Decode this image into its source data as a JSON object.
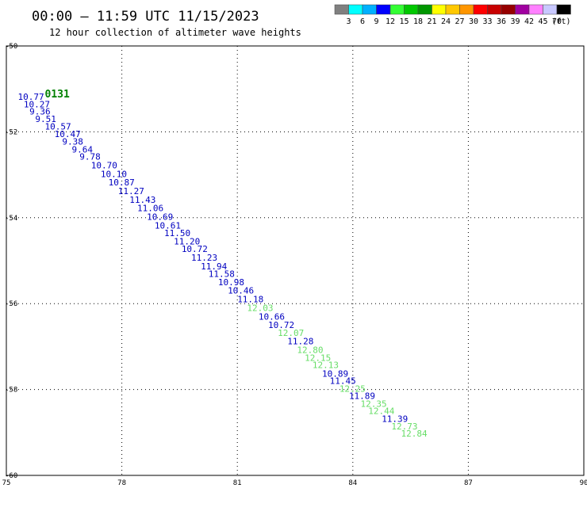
{
  "header": {
    "title": "00:00 – 11:59 UTC 11/15/2023",
    "subtitle": "12 hour collection of altimeter wave heights"
  },
  "colorbar": {
    "unit": "(ft)",
    "bins": [
      {
        "color": "#808080",
        "label": "3"
      },
      {
        "color": "#00ffff",
        "label": "6"
      },
      {
        "color": "#00b0ff",
        "label": "9"
      },
      {
        "color": "#0000ff",
        "label": "12"
      },
      {
        "color": "#33ff33",
        "label": "15"
      },
      {
        "color": "#00c800",
        "label": "18"
      },
      {
        "color": "#009600",
        "label": "21"
      },
      {
        "color": "#ffff00",
        "label": "24"
      },
      {
        "color": "#ffc800",
        "label": "27"
      },
      {
        "color": "#ff9600",
        "label": "30"
      },
      {
        "color": "#ff0000",
        "label": "33"
      },
      {
        "color": "#c80000",
        "label": "36"
      },
      {
        "color": "#960000",
        "label": "39"
      },
      {
        "color": "#a000a0",
        "label": "42"
      },
      {
        "color": "#ff80ff",
        "label": "45"
      },
      {
        "color": "#c8c8ff",
        "label": "70"
      },
      {
        "color": "#000000",
        "label": ""
      }
    ]
  },
  "axes": {
    "x_ticks": [
      "75",
      "78",
      "81",
      "84",
      "87",
      "90"
    ],
    "y_ticks": [
      "-50",
      "-52",
      "-54",
      "-56",
      "-58",
      "-60"
    ]
  },
  "colors": {
    "jason2": "#0000c0",
    "jason3": "#008000",
    "altika": "#ff9900",
    "cryosat": "#cc0000",
    "s3a": "#cc0000",
    "light_green": "#66dd66"
  },
  "tracks": [
    {
      "satellite": "jason2",
      "pass_label": {
        "text": "0131",
        "lon": 76.0,
        "lat": -51.2
      },
      "points": [
        {
          "lon": 75.3,
          "lat": -51.25,
          "text": "10.77",
          "tier": "blue"
        },
        {
          "lon": 75.45,
          "lat": -51.43,
          "text": "10.27",
          "tier": "blue"
        },
        {
          "lon": 75.6,
          "lat": -51.6,
          "text": "9.36",
          "tier": "blue"
        },
        {
          "lon": 75.75,
          "lat": -51.77,
          "text": "9.51",
          "tier": "blue"
        },
        {
          "lon": 76.0,
          "lat": -51.95,
          "text": "10.57",
          "tier": "blue"
        },
        {
          "lon": 76.25,
          "lat": -52.12,
          "text": "10.47",
          "tier": "blue"
        },
        {
          "lon": 76.45,
          "lat": -52.3,
          "text": "9.38",
          "tier": "blue"
        },
        {
          "lon": 76.7,
          "lat": -52.48,
          "text": "9.64",
          "tier": "blue"
        },
        {
          "lon": 76.9,
          "lat": -52.65,
          "text": "9.78",
          "tier": "blue"
        },
        {
          "lon": 77.2,
          "lat": -52.85,
          "text": "10.70",
          "tier": "blue"
        },
        {
          "lon": 77.45,
          "lat": -53.05,
          "text": "10.10",
          "tier": "blue"
        },
        {
          "lon": 77.65,
          "lat": -53.25,
          "text": "10.87",
          "tier": "blue"
        },
        {
          "lon": 77.9,
          "lat": -53.45,
          "text": "11.27",
          "tier": "blue"
        },
        {
          "lon": 78.2,
          "lat": -53.65,
          "text": "11.43",
          "tier": "blue"
        },
        {
          "lon": 78.4,
          "lat": -53.85,
          "text": "11.06",
          "tier": "blue"
        },
        {
          "lon": 78.65,
          "lat": -54.05,
          "text": "10.69",
          "tier": "blue"
        },
        {
          "lon": 78.85,
          "lat": -54.25,
          "text": "10.61",
          "tier": "blue"
        },
        {
          "lon": 79.1,
          "lat": -54.43,
          "text": "11.50",
          "tier": "blue"
        },
        {
          "lon": 79.35,
          "lat": -54.62,
          "text": "11.20",
          "tier": "blue"
        },
        {
          "lon": 79.55,
          "lat": -54.8,
          "text": "10.72",
          "tier": "blue"
        },
        {
          "lon": 79.8,
          "lat": -55.0,
          "text": "11.23",
          "tier": "blue"
        },
        {
          "lon": 80.05,
          "lat": -55.2,
          "text": "11.94",
          "tier": "blue"
        },
        {
          "lon": 80.25,
          "lat": -55.38,
          "text": "11.58",
          "tier": "blue"
        },
        {
          "lon": 80.5,
          "lat": -55.57,
          "text": "10.98",
          "tier": "blue"
        },
        {
          "lon": 80.75,
          "lat": -55.77,
          "text": "10.46",
          "tier": "blue"
        },
        {
          "lon": 81.0,
          "lat": -55.97,
          "text": "11.18",
          "tier": "blue"
        },
        {
          "lon": 81.25,
          "lat": -56.17,
          "text": "12.03",
          "tier": "green"
        },
        {
          "lon": 81.55,
          "lat": -56.37,
          "text": "10.66",
          "tier": "blue"
        },
        {
          "lon": 81.8,
          "lat": -56.57,
          "text": "10.72",
          "tier": "blue"
        },
        {
          "lon": 82.05,
          "lat": -56.75,
          "text": "12.07",
          "tier": "green"
        },
        {
          "lon": 82.3,
          "lat": -56.95,
          "text": "11.28",
          "tier": "blue"
        },
        {
          "lon": 82.55,
          "lat": -57.15,
          "text": "12.80",
          "tier": "green"
        },
        {
          "lon": 82.75,
          "lat": -57.33,
          "text": "12.15",
          "tier": "green"
        },
        {
          "lon": 82.95,
          "lat": -57.5,
          "text": "12.13",
          "tier": "green"
        },
        {
          "lon": 83.2,
          "lat": -57.7,
          "text": "10.89",
          "tier": "blue"
        },
        {
          "lon": 83.4,
          "lat": -57.87,
          "text": "11.45",
          "tier": "blue"
        },
        {
          "lon": 83.65,
          "lat": -58.05,
          "text": "12.25",
          "tier": "green"
        },
        {
          "lon": 83.9,
          "lat": -58.22,
          "text": "11.89",
          "tier": "blue"
        },
        {
          "lon": 84.2,
          "lat": -58.4,
          "text": "12.35",
          "tier": "green"
        },
        {
          "lon": 84.4,
          "lat": -58.57,
          "text": "12.44",
          "tier": "green"
        },
        {
          "lon": 84.75,
          "lat": -58.75,
          "text": "11.39",
          "tier": "blue"
        },
        {
          "lon": 85.0,
          "lat": -58.93,
          "text": "12.73",
          "tier": "green"
        },
        {
          "lon": 85.25,
          "lat": -59.1,
          "text": "12.84",
          "tier": "green"
        }
      ]
    }
  ]
}
